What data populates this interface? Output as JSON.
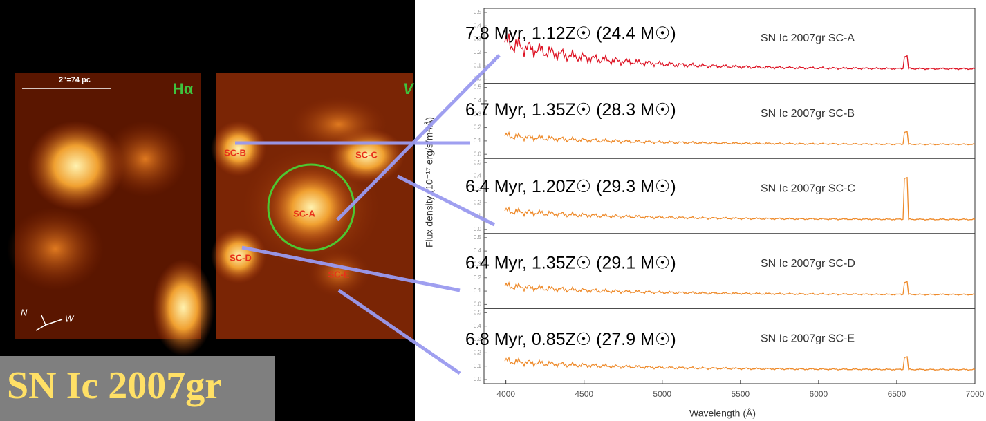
{
  "title": "SN Ic 2007gr",
  "images": [
    {
      "band": "Hα",
      "scale_bar": "2\"=74 pc",
      "compass": [
        "N",
        "W"
      ]
    },
    {
      "band": "V",
      "clusters": [
        "SC-B",
        "SC-C",
        "SC-A",
        "SC-D",
        "SC-E"
      ]
    }
  ],
  "spectra": {
    "x_label": "Wavelength (Å)",
    "y_label": "Flux density (10⁻¹⁷ erg/s/m²/Å)",
    "xlim": [
      3860,
      7000
    ],
    "xticks": [
      4000,
      4500,
      5000,
      5500,
      6000,
      6500,
      7000
    ],
    "yticks": [
      "0.0",
      "0.1",
      "0.2",
      "0.3",
      "0.4",
      "0.5"
    ],
    "panels": [
      {
        "name": "SN Ic 2007gr SC-A",
        "fit": "7.8 Myr, 1.12Z☉ (24.4 M☉)",
        "color": "#dd1122"
      },
      {
        "name": "SN Ic 2007gr SC-B",
        "fit": "6.7 Myr, 1.35Z☉ (28.3 M☉)",
        "color": "#ee8a2a"
      },
      {
        "name": "SN Ic 2007gr SC-C",
        "fit": "6.4 Myr, 1.20Z☉ (29.3 M☉)",
        "color": "#ee8a2a"
      },
      {
        "name": "SN Ic 2007gr SC-D",
        "fit": "6.4 Myr, 1.35Z☉ (29.1 M☉)",
        "color": "#ee8a2a"
      },
      {
        "name": "SN Ic 2007gr SC-E",
        "fit": "6.8 Myr, 0.85Z☉ (27.9 M☉)",
        "color": "#ee8a2a"
      }
    ]
  }
}
